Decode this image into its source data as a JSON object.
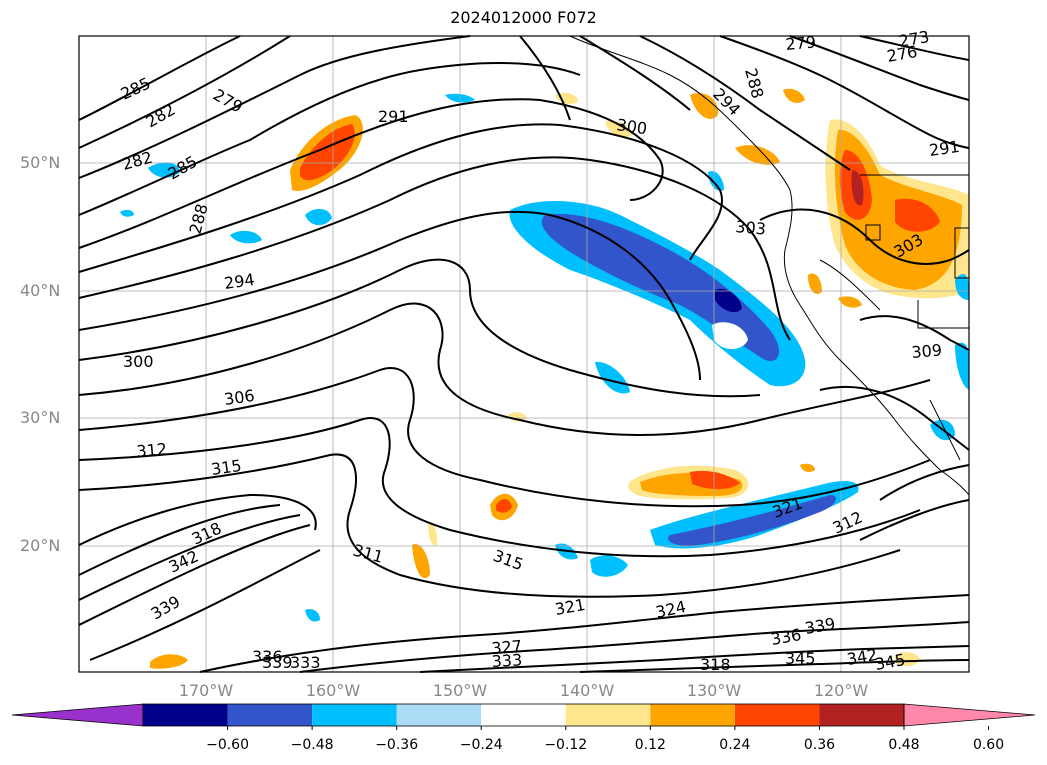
{
  "title": "2024012000 F072",
  "latitude_labels": [
    "50°N",
    "40°N",
    "30°N",
    "20°N"
  ],
  "longitude_labels": [
    "170°W",
    "160°W",
    "150°W",
    "140°W",
    "130°W",
    "120°W"
  ],
  "contour_labels": [
    "285",
    "282",
    "279",
    "282",
    "285",
    "288",
    "291",
    "294",
    "300",
    "303",
    "306",
    "312",
    "315",
    "318",
    "342",
    "339",
    "300",
    "303",
    "309",
    "291",
    "276",
    "273",
    "279",
    "288",
    "294",
    "315",
    "321",
    "321",
    "312",
    "324",
    "327",
    "333",
    "339",
    "342",
    "345",
    "345",
    "336",
    "336",
    "339",
    "333",
    "318",
    "311"
  ],
  "colorbar": {
    "ticks": [
      "−0.60",
      "−0.48",
      "−0.36",
      "−0.24",
      "−0.12",
      "0.12",
      "0.24",
      "0.36",
      "0.48",
      "0.60"
    ],
    "colors": [
      "#9932cc",
      "#00008b",
      "#3355cc",
      "#00bfff",
      "#aadcf5",
      "#ffffff",
      "#ffe68c",
      "#ffa500",
      "#ff4500",
      "#b22222",
      "#ff88aa"
    ]
  }
}
